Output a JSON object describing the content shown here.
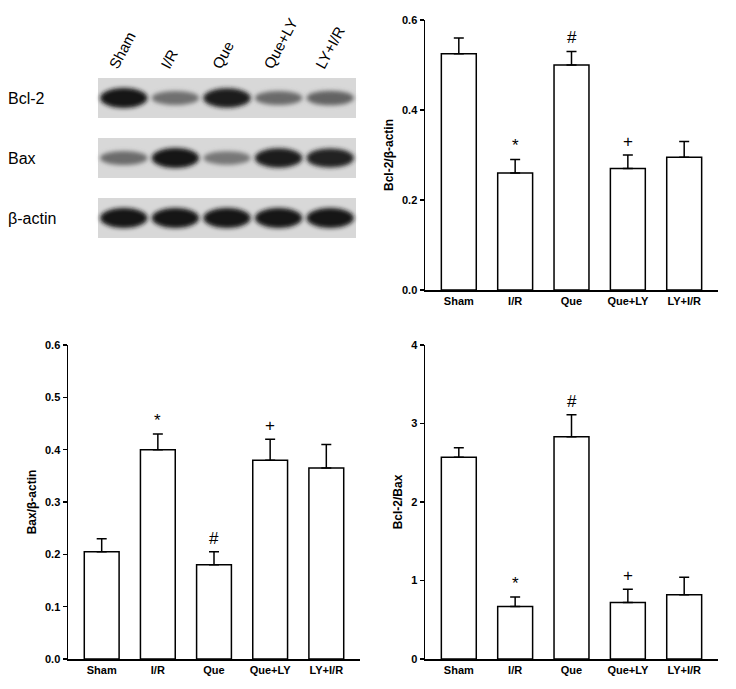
{
  "blot": {
    "lanes": [
      "Sham",
      "I/R",
      "Que",
      "Que+LY",
      "LY+I/R"
    ],
    "rows": [
      "Bcl-2",
      "Bax",
      "β-actin"
    ]
  },
  "chart_data": [
    {
      "type": "bar",
      "y_label": "Bcl-2/β-actin",
      "color": "#ffffff",
      "categories": [
        "Sham",
        "I/R",
        "Que",
        "Que+LY",
        "LY+I/R"
      ],
      "values": [
        0.525,
        0.26,
        0.5,
        0.27,
        0.295
      ],
      "errors": [
        0.035,
        0.03,
        0.03,
        0.03,
        0.035
      ],
      "ylim": [
        0,
        0.6
      ],
      "yticks": [
        {
          "value": 0,
          "label": "0.0"
        },
        0.2,
        0.4,
        0.6
      ],
      "annotations": [
        {
          "category": "I/R",
          "text": "*"
        },
        {
          "category": "Que",
          "text": "#"
        },
        {
          "category": "Que+LY",
          "text": "+"
        }
      ]
    },
    {
      "type": "bar",
      "y_label": "Bax/β-actin",
      "color": "#ffffff",
      "categories": [
        "Sham",
        "I/R",
        "Que",
        "Que+LY",
        "LY+I/R"
      ],
      "values": [
        0.205,
        0.4,
        0.18,
        0.38,
        0.365
      ],
      "errors": [
        0.025,
        0.03,
        0.025,
        0.04,
        0.045
      ],
      "ylim": [
        0,
        0.6
      ],
      "yticks": [
        {
          "value": 0,
          "label": "0.0"
        },
        0.1,
        0.2,
        0.3,
        0.4,
        0.5,
        0.6
      ],
      "annotations": [
        {
          "category": "I/R",
          "text": "*"
        },
        {
          "category": "Que",
          "text": "#"
        },
        {
          "category": "Que+LY",
          "text": "+"
        }
      ]
    },
    {
      "type": "bar",
      "y_label": "Bcl-2/Bax",
      "color": "#ffffff",
      "categories": [
        "Sham",
        "I/R",
        "Que",
        "Que+LY",
        "LY+I/R"
      ],
      "values": [
        2.57,
        0.67,
        2.83,
        0.72,
        0.82
      ],
      "errors": [
        0.12,
        0.12,
        0.28,
        0.17,
        0.22
      ],
      "ylim": [
        0,
        4
      ],
      "yticks": [
        0,
        1,
        2,
        3,
        4
      ],
      "annotations": [
        {
          "category": "I/R",
          "text": "*"
        },
        {
          "category": "Que",
          "text": "#"
        },
        {
          "category": "Que+LY",
          "text": "+"
        }
      ]
    }
  ]
}
